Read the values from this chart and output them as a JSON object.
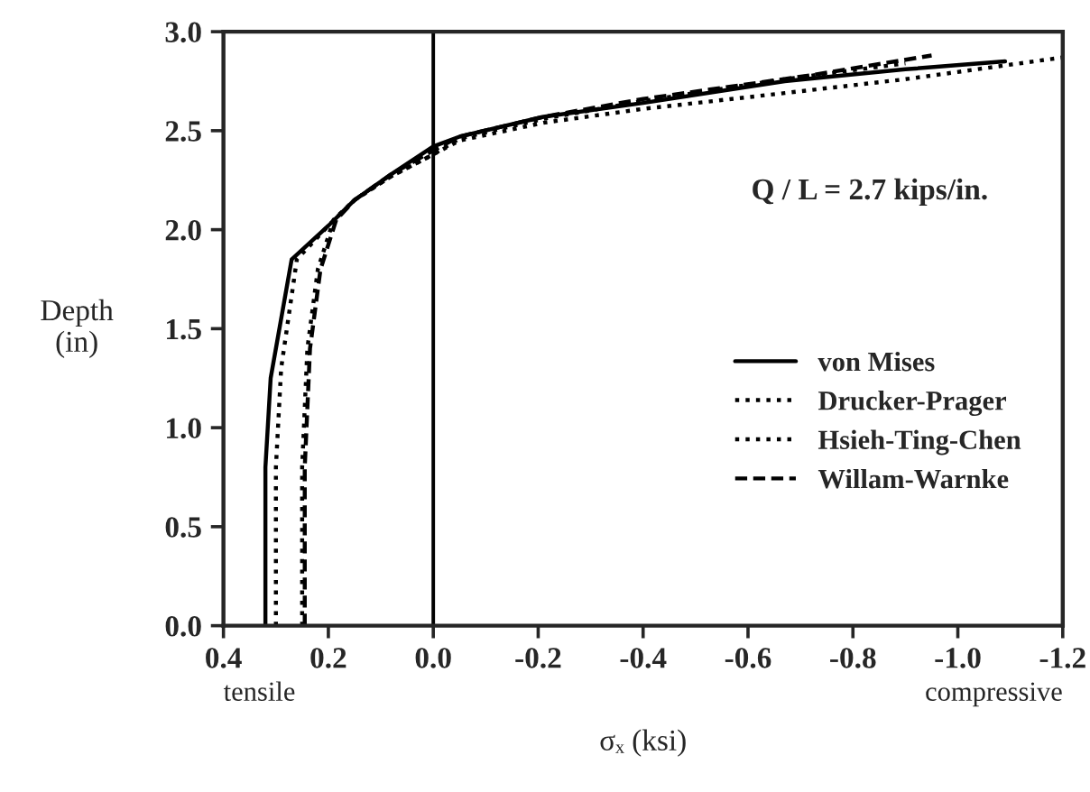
{
  "chart_data": {
    "type": "line",
    "xlabel": "σₓ (ksi)",
    "ylabel": "Depth\n(in)",
    "xlim": [
      0.4,
      -1.2
    ],
    "xticks": [
      {
        "value": 0.4,
        "label": "0.4"
      },
      {
        "value": 0.2,
        "label": "0.2"
      },
      {
        "value": 0,
        "label": "0.0"
      },
      {
        "value": -0.2,
        "label": "-0.2"
      },
      {
        "value": -0.4,
        "label": "-0.4"
      },
      {
        "value": -0.6,
        "label": "-0.6"
      },
      {
        "value": -0.8,
        "label": "-0.8"
      },
      {
        "value": -1.0,
        "label": "-1.0"
      },
      {
        "value": -1.2,
        "label": "-1.2"
      }
    ],
    "ylim": [
      0,
      3
    ],
    "yticks": [
      {
        "value": 0,
        "label": "0.0"
      },
      {
        "value": 0.5,
        "label": "0.5"
      },
      {
        "value": 1.0,
        "label": "1.0"
      },
      {
        "value": 1.5,
        "label": "1.5"
      },
      {
        "value": 2.0,
        "label": "2.0"
      },
      {
        "value": 2.5,
        "label": "2.5"
      },
      {
        "value": 3.0,
        "label": "3.0"
      }
    ],
    "series": [
      {
        "name": "von Mises",
        "color": "#000000",
        "line_style": "solid",
        "x": [
          0.32,
          0.32,
          0.31,
          0.27,
          0.2,
          0.15,
          0.08,
          0.0,
          -0.05,
          -0.21,
          -0.4,
          -0.67,
          -0.9,
          -1.09
        ],
        "values": [
          0,
          0.8,
          1.25,
          1.85,
          2.02,
          2.15,
          2.28,
          2.42,
          2.47,
          2.57,
          2.64,
          2.75,
          2.81,
          2.85
        ]
      },
      {
        "name": "Drucker-Prager",
        "color": "#000000",
        "line_style": "dotted",
        "x": [
          0.3,
          0.3,
          0.29,
          0.26,
          0.2,
          0.15,
          0.08,
          0.0,
          -0.05,
          -0.21,
          -0.4,
          -0.67,
          -0.9,
          -1.2
        ],
        "values": [
          0,
          0.8,
          1.3,
          1.85,
          2.02,
          2.15,
          2.27,
          2.38,
          2.45,
          2.54,
          2.61,
          2.69,
          2.76,
          2.87
        ]
      },
      {
        "name": "Hsieh-Ting-Chen",
        "color": "#000000",
        "line_style": "dotted",
        "x": [
          0.25,
          0.25,
          0.24,
          0.22,
          0.19,
          0.15,
          0.08,
          0.0,
          -0.05,
          -0.21,
          -0.4,
          -0.67,
          -0.9
        ],
        "values": [
          0,
          0.8,
          1.4,
          1.8,
          2.05,
          2.15,
          2.27,
          2.38,
          2.46,
          2.56,
          2.65,
          2.76,
          2.84
        ]
      },
      {
        "name": "Willam-Warnke",
        "color": "#000000",
        "line_style": "dashed",
        "x": [
          0.245,
          0.245,
          0.235,
          0.215,
          0.185,
          0.15,
          0.08,
          0.0,
          -0.05,
          -0.21,
          -0.4,
          -0.72,
          -0.95
        ],
        "values": [
          0,
          0.8,
          1.4,
          1.8,
          2.05,
          2.15,
          2.28,
          2.4,
          2.47,
          2.57,
          2.66,
          2.78,
          2.88
        ]
      }
    ],
    "ref_lines": [
      {
        "axis": "x",
        "value": 0,
        "color": "#000000",
        "line_style": "solid"
      }
    ],
    "annotations": [
      "Q / L = 2.7 kips/in.",
      "tensile",
      "compressive"
    ],
    "legend": "bottom right",
    "grid": false
  }
}
